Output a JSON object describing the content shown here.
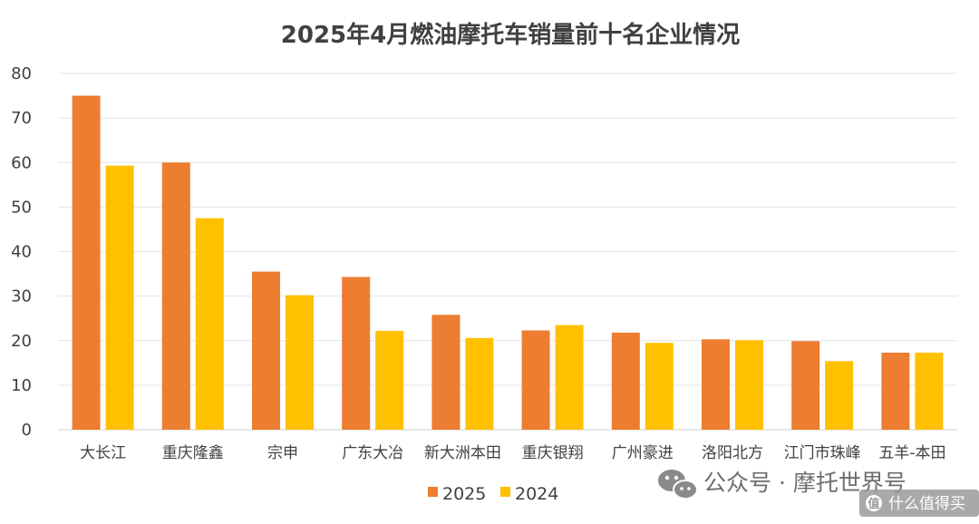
{
  "chart_data": {
    "type": "bar",
    "title": "2025年4月燃油摩托车销量前十名企业情况",
    "categories": [
      "大长江",
      "重庆隆鑫",
      "宗申",
      "广东大冶",
      "新大洲本田",
      "重庆银翔",
      "广州豪进",
      "洛阳北方",
      "江门市珠峰",
      "五羊-本田"
    ],
    "series": [
      {
        "name": "2025",
        "color": "#ED7D31",
        "values": [
          75,
          60,
          35.5,
          34.3,
          25.8,
          22.3,
          21.8,
          20.3,
          19.9,
          17.3
        ]
      },
      {
        "name": "2024",
        "color": "#FFC000",
        "values": [
          59.3,
          47.5,
          30.2,
          22.2,
          20.6,
          23.5,
          19.5,
          20.1,
          15.4,
          17.3
        ]
      }
    ],
    "ylim": [
      0,
      80
    ],
    "yticks": [
      0,
      10,
      20,
      30,
      40,
      50,
      60,
      70,
      80
    ],
    "grid": true,
    "legend_position": "bottom"
  },
  "watermark": {
    "text": "公众号 · 摩托世界号",
    "sub_text": "什么值得买"
  }
}
